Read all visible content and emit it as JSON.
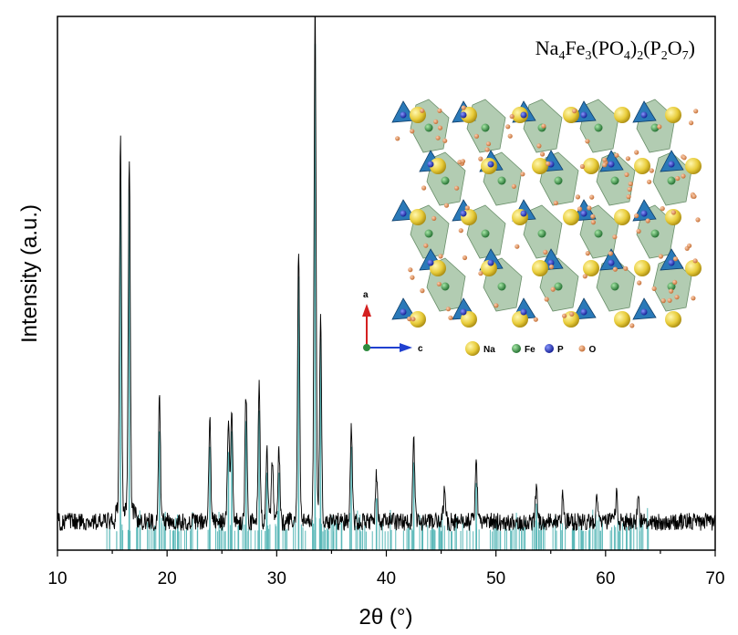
{
  "chart_data": {
    "type": "line",
    "xlabel": "2θ (°)",
    "ylabel": "Intensity (a.u.)",
    "xlim": [
      10,
      70
    ],
    "xticks": [
      "10",
      "20",
      "30",
      "40",
      "50",
      "60",
      "70"
    ],
    "annotation": {
      "formula_parts": [
        {
          "t": "Na",
          "sub": false
        },
        {
          "t": "4",
          "sub": true
        },
        {
          "t": "Fe",
          "sub": false
        },
        {
          "t": "3",
          "sub": true
        },
        {
          "t": "(PO",
          "sub": false
        },
        {
          "t": "4",
          "sub": true
        },
        {
          "t": ")",
          "sub": false
        },
        {
          "t": "2",
          "sub": true
        },
        {
          "t": "(P",
          "sub": false
        },
        {
          "t": "2",
          "sub": true
        },
        {
          "t": "O",
          "sub": false
        },
        {
          "t": "7",
          "sub": true
        },
        {
          "t": ")",
          "sub": false
        }
      ]
    },
    "inset": {
      "axis_labels": {
        "up": "a",
        "right": "c"
      },
      "legend": [
        {
          "label": "Na",
          "color": "#e8cc3a"
        },
        {
          "label": "Fe",
          "color": "#2e8b3e"
        },
        {
          "label": "P",
          "color": "#2030c8"
        },
        {
          "label": "O",
          "color": "#e09060"
        }
      ],
      "polyhedra_colors": {
        "fe": "#9fbf9f",
        "p": "#2a79b8"
      }
    },
    "series": [
      {
        "style": "observed",
        "color": "#000000",
        "peaks": [
          {
            "x": 15.75,
            "y": 0.72
          },
          {
            "x": 16.55,
            "y": 0.69
          },
          {
            "x": 19.3,
            "y": 0.24
          },
          {
            "x": 23.9,
            "y": 0.19
          },
          {
            "x": 25.6,
            "y": 0.19
          },
          {
            "x": 25.9,
            "y": 0.22
          },
          {
            "x": 27.2,
            "y": 0.25
          },
          {
            "x": 28.4,
            "y": 0.26
          },
          {
            "x": 29.1,
            "y": 0.14
          },
          {
            "x": 29.6,
            "y": 0.11
          },
          {
            "x": 30.2,
            "y": 0.14
          },
          {
            "x": 32.0,
            "y": 0.53
          },
          {
            "x": 33.5,
            "y": 1.0
          },
          {
            "x": 34.0,
            "y": 0.4
          },
          {
            "x": 36.8,
            "y": 0.19
          },
          {
            "x": 39.1,
            "y": 0.09
          },
          {
            "x": 42.5,
            "y": 0.16
          },
          {
            "x": 45.3,
            "y": 0.06
          },
          {
            "x": 48.2,
            "y": 0.12
          },
          {
            "x": 53.7,
            "y": 0.07
          },
          {
            "x": 56.1,
            "y": 0.05
          },
          {
            "x": 59.2,
            "y": 0.04
          },
          {
            "x": 61.0,
            "y": 0.05
          },
          {
            "x": 63.0,
            "y": 0.04
          }
        ]
      },
      {
        "style": "reference",
        "color": "#5ab8b8",
        "peaks": [
          {
            "x": 15.75,
            "y": 0.7
          },
          {
            "x": 16.55,
            "y": 0.67
          },
          {
            "x": 19.3,
            "y": 0.2
          },
          {
            "x": 23.9,
            "y": 0.17
          },
          {
            "x": 25.6,
            "y": 0.16
          },
          {
            "x": 25.9,
            "y": 0.2
          },
          {
            "x": 27.2,
            "y": 0.22
          },
          {
            "x": 28.4,
            "y": 0.24
          },
          {
            "x": 29.1,
            "y": 0.12
          },
          {
            "x": 30.2,
            "y": 0.12
          },
          {
            "x": 32.0,
            "y": 0.5
          },
          {
            "x": 33.5,
            "y": 0.95
          },
          {
            "x": 34.0,
            "y": 0.38
          },
          {
            "x": 36.8,
            "y": 0.17
          },
          {
            "x": 39.1,
            "y": 0.07
          },
          {
            "x": 42.5,
            "y": 0.14
          },
          {
            "x": 48.2,
            "y": 0.1
          },
          {
            "x": 53.7,
            "y": 0.06
          }
        ]
      }
    ]
  }
}
